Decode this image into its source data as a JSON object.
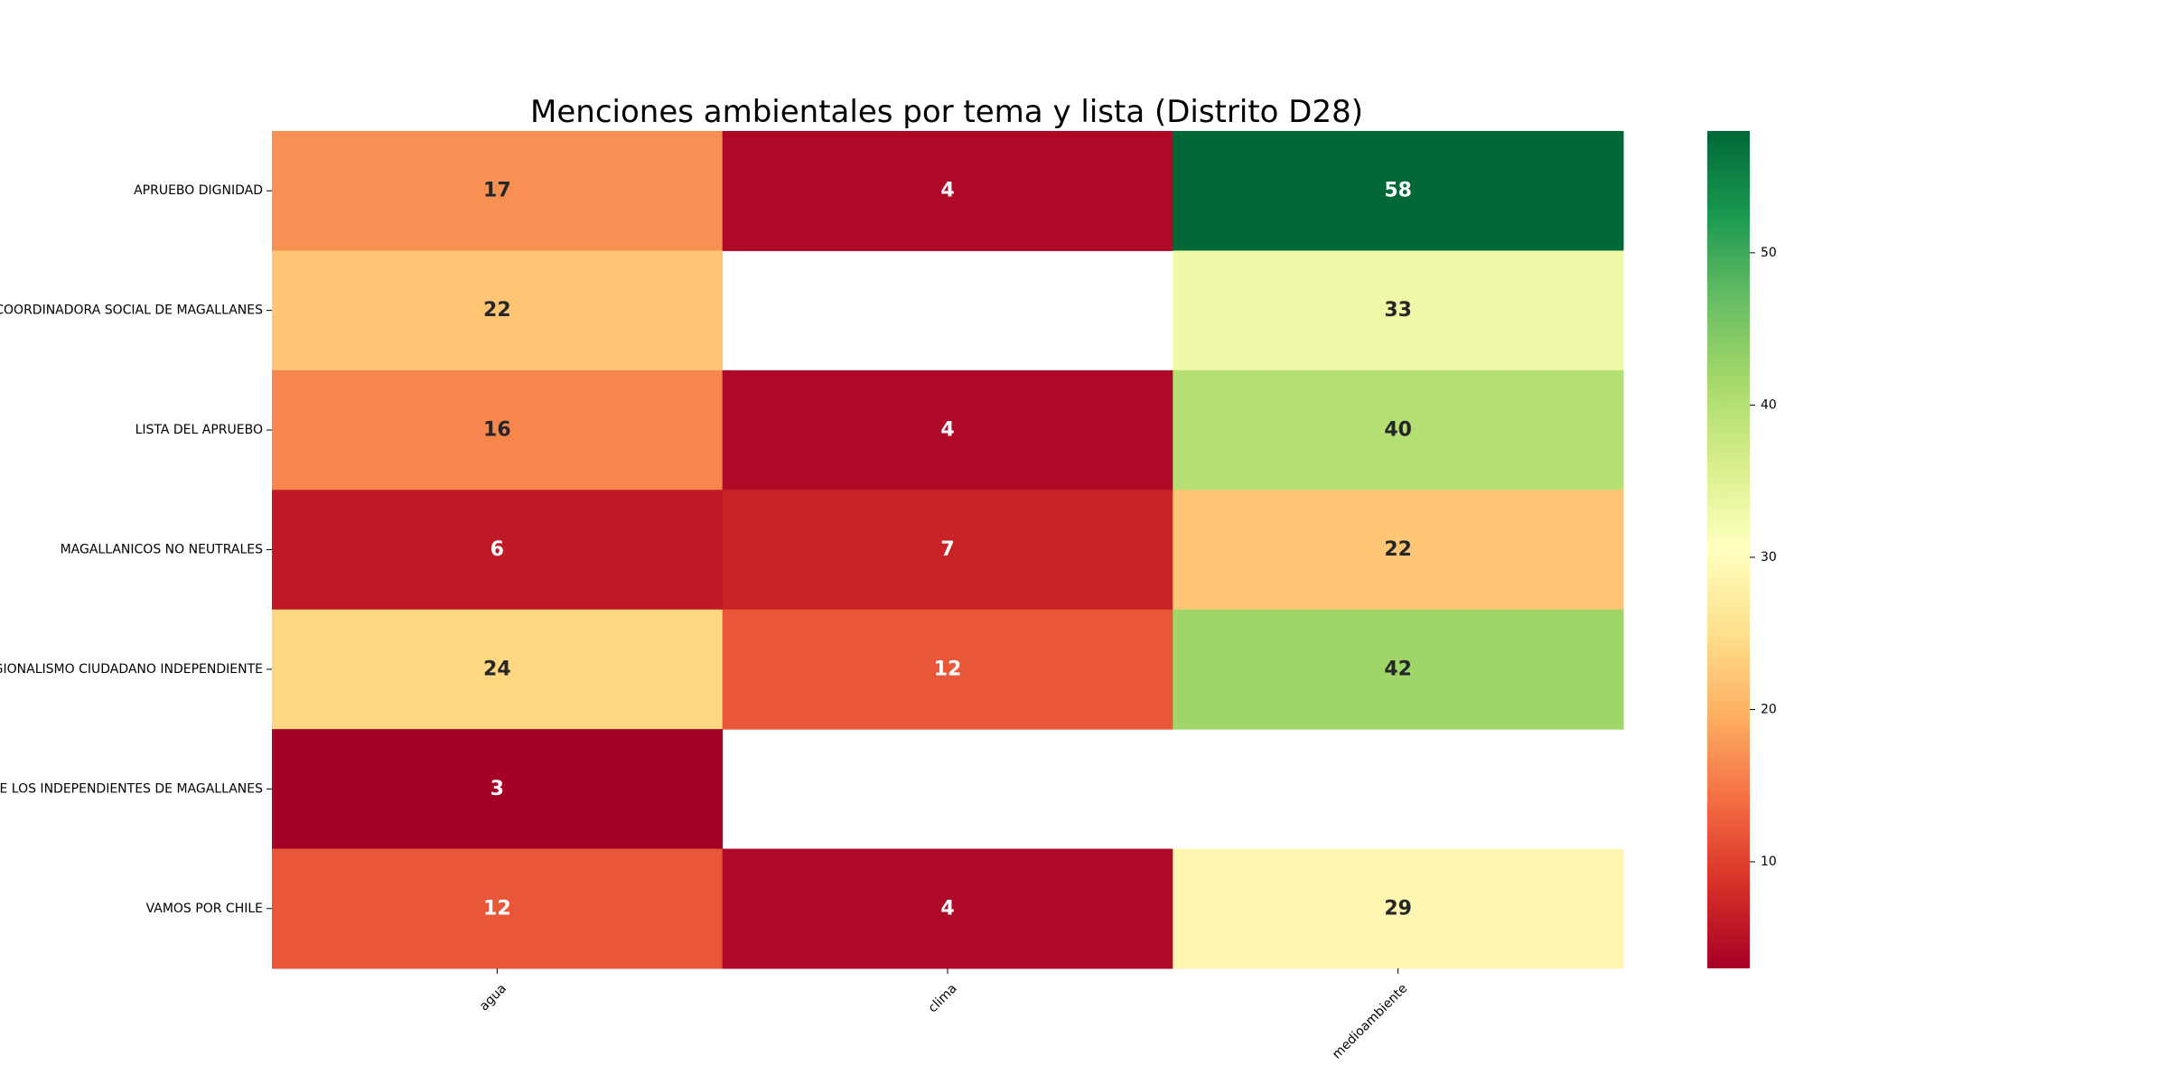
{
  "chart_data": {
    "type": "heatmap",
    "title": "Menciones ambientales por tema y lista (Distrito D28)",
    "xlabel": "",
    "ylabel": "",
    "x": [
      "agua",
      "clima",
      "medioambiente"
    ],
    "y": [
      "APRUEBO DIGNIDAD",
      "COORDINADORA SOCIAL DE MAGALLANES",
      "LISTA DEL APRUEBO",
      "MAGALLANICOS NO NEUTRALES",
      "REGIONALISMO CIUDADANO INDEPENDIENTE",
      "PARTIDO DE LOS INDEPENDIENTES DE MAGALLANES",
      "VAMOS POR CHILE"
    ],
    "values": [
      [
        17,
        4,
        58
      ],
      [
        22,
        null,
        33
      ],
      [
        16,
        4,
        40
      ],
      [
        6,
        7,
        22
      ],
      [
        24,
        12,
        42
      ],
      [
        3,
        null,
        null
      ],
      [
        12,
        4,
        29
      ]
    ],
    "colorscale": "RdYlGn",
    "colorbar": {
      "range": [
        3,
        58
      ],
      "ticks": [
        10,
        20,
        30,
        40,
        50
      ]
    },
    "grid": false
  }
}
